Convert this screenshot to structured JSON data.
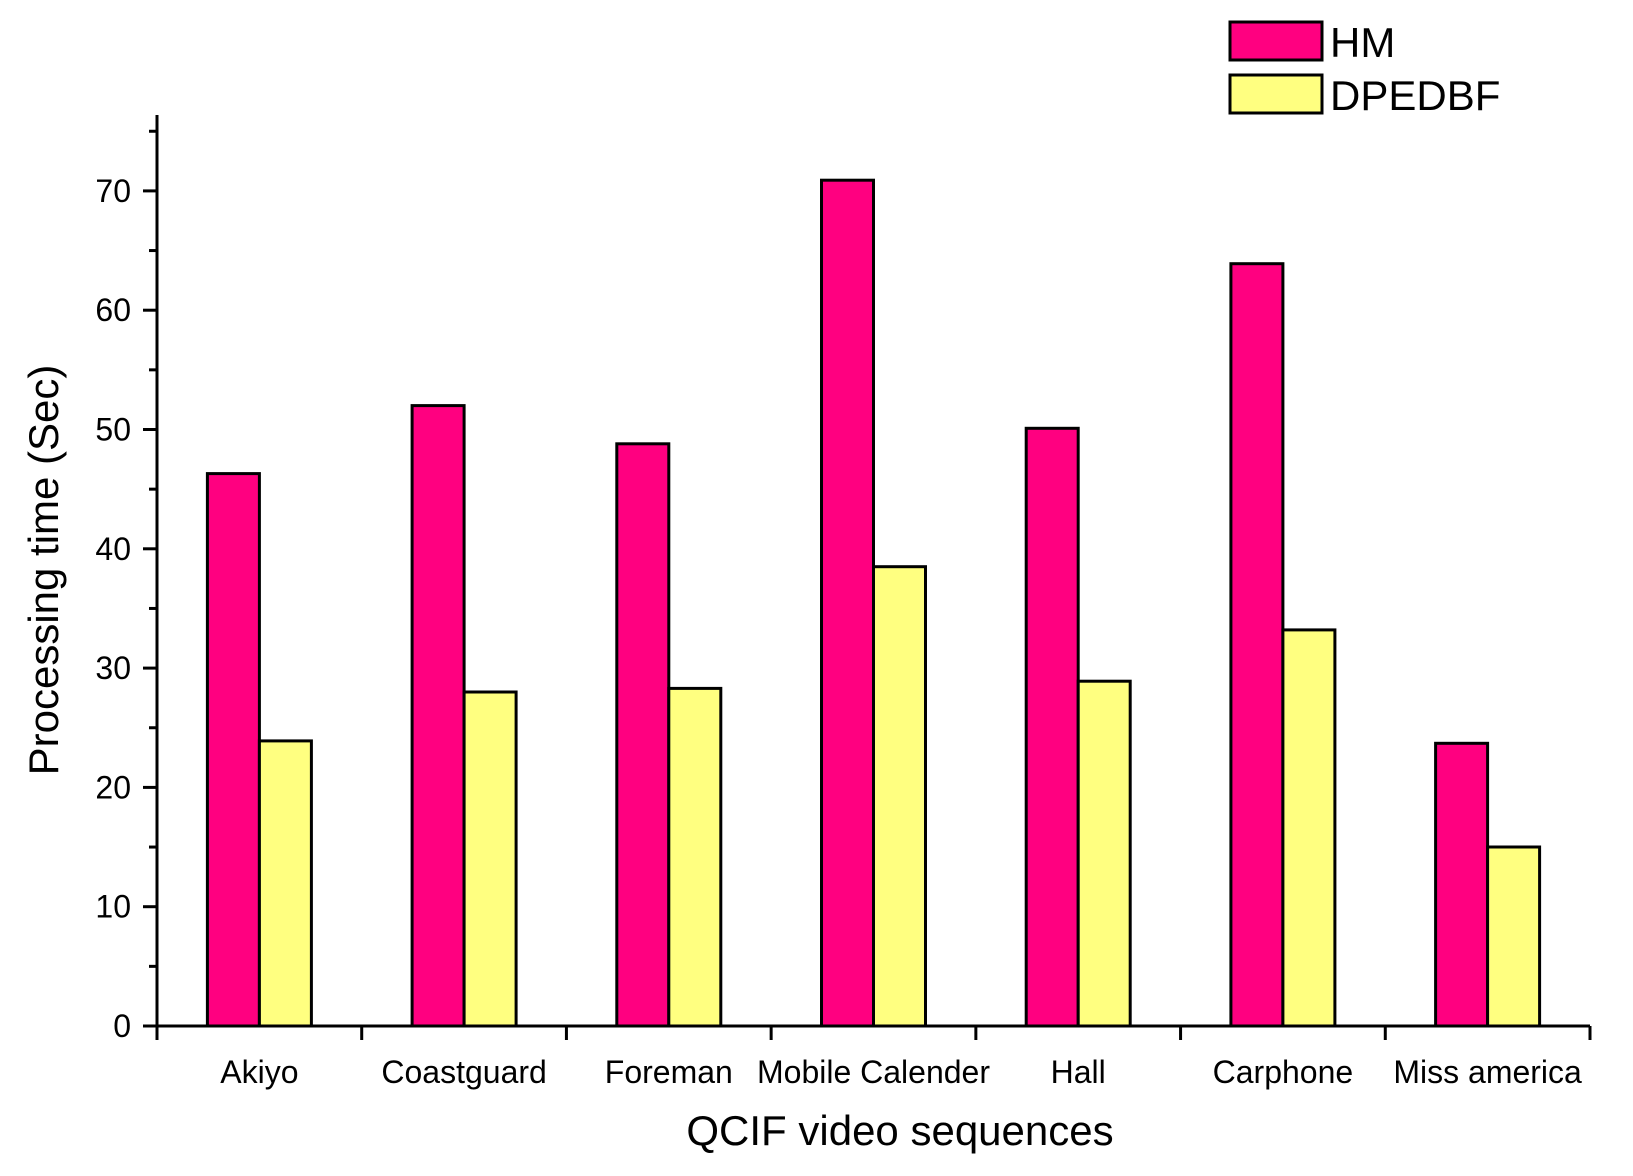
{
  "chart_data": {
    "type": "bar",
    "title": "",
    "xlabel": "QCIF video sequences",
    "ylabel": "Processing time (Sec)",
    "ylim": [
      0,
      76
    ],
    "yticks": [
      0,
      10,
      20,
      30,
      40,
      50,
      60,
      70
    ],
    "categories": [
      "Akiyo",
      "Coastguard",
      "Foreman",
      "Mobile Calender",
      "Hall",
      "Carphone",
      "Miss america"
    ],
    "series": [
      {
        "name": "HM",
        "color": "#ff0080",
        "values": [
          46.3,
          52.0,
          48.8,
          70.9,
          50.1,
          63.9,
          23.7
        ]
      },
      {
        "name": "DPEDBF",
        "color": "#ffff80",
        "values": [
          23.9,
          28.0,
          28.3,
          38.5,
          28.9,
          33.2,
          15.0
        ]
      }
    ],
    "legend_position": "top-right",
    "grid": false
  }
}
